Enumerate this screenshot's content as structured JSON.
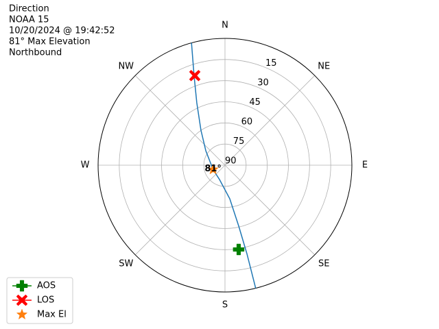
{
  "chart_data": {
    "type": "polar",
    "title_lines": [
      "Direction",
      "NOAA 15",
      "10/20/2024 @ 19:42:52",
      "81° Max Elevation",
      "Northbound"
    ],
    "xticks": [
      {
        "value": 0,
        "label": "N"
      },
      {
        "value": 45,
        "label": "NE"
      },
      {
        "value": 90,
        "label": "E"
      },
      {
        "value": 135,
        "label": "SE"
      },
      {
        "value": 180,
        "label": "S"
      },
      {
        "value": 225,
        "label": "SW"
      },
      {
        "value": 270,
        "label": "W"
      },
      {
        "value": 315,
        "label": "NW"
      }
    ],
    "rlim": [
      90,
      0
    ],
    "rticks": [
      15,
      30,
      45,
      60,
      75,
      90
    ],
    "grid": true,
    "track": {
      "color": "#1f77b4",
      "az": [
        166.0,
        166.1,
        167.3,
        171.9,
        200.9,
        250,
        306.9,
        325.5,
        335.7,
        341.0,
        344.7
      ],
      "el": [
        0,
        25.3,
        45.6,
        65.9,
        79.1,
        81,
        73,
        59.9,
        41.4,
        22.6,
        0
      ]
    },
    "series": [
      {
        "name": "AOS",
        "color": "#008000",
        "marker": "plus",
        "az": [
          170.8
        ],
        "el": [
          29.4
        ]
      },
      {
        "name": "LOS",
        "color": "#ff0000",
        "marker": "x",
        "az": [
          341.4
        ],
        "el": [
          22.9
        ]
      },
      {
        "name": "Max El",
        "color": "#ff7f0e",
        "marker": "star",
        "az": [
          250
        ],
        "el": [
          81
        ],
        "value_labels": [
          "81°"
        ]
      }
    ],
    "legend": "lower left"
  }
}
